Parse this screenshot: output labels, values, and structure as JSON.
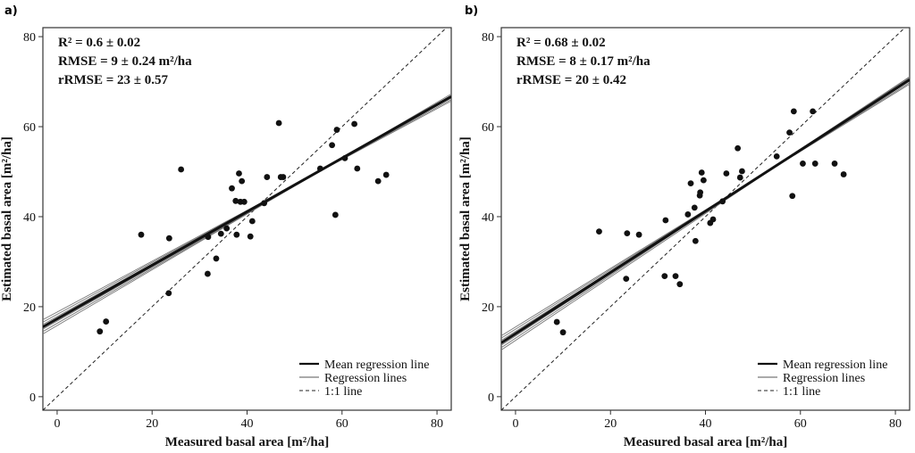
{
  "chart_data": [
    {
      "type": "scatter",
      "panel_label": "a)",
      "xlabel": "Measured basal area [m²/ha]",
      "ylabel": "Estimated basal area [m²/ha]",
      "xlim": [
        -3,
        83
      ],
      "ylim": [
        -3,
        82
      ],
      "xticks": [
        "0",
        "20",
        "40",
        "60",
        "80"
      ],
      "yticks": [
        "0",
        "20",
        "40",
        "60",
        "80"
      ],
      "stats": [
        "R² = 0.6 ± 0.02",
        "RMSE = 9 ± 0.24 m²/ha",
        "rRMSE = 23 ± 0.57"
      ],
      "mean_regression": {
        "intercept": 17.3,
        "slope": 0.595
      },
      "regression_lines": [
        {
          "intercept": 15.8,
          "slope": 0.62
        },
        {
          "intercept": 16.3,
          "slope": 0.61
        },
        {
          "intercept": 16.8,
          "slope": 0.6
        },
        {
          "intercept": 17.8,
          "slope": 0.585
        },
        {
          "intercept": 18.3,
          "slope": 0.575
        },
        {
          "intercept": 18.8,
          "slope": 0.565
        }
      ],
      "points": [
        [
          9,
          14.5
        ],
        [
          10.3,
          16.7
        ],
        [
          17.7,
          36
        ],
        [
          23.5,
          23
        ],
        [
          23.6,
          35.2
        ],
        [
          26.1,
          50.5
        ],
        [
          31.7,
          27.3
        ],
        [
          31.8,
          35.5
        ],
        [
          33.5,
          30.7
        ],
        [
          34.5,
          36.2
        ],
        [
          35.7,
          37.4
        ],
        [
          36.8,
          46.3
        ],
        [
          37.6,
          43.5
        ],
        [
          37.8,
          36
        ],
        [
          38.3,
          49.6
        ],
        [
          38.6,
          43.3
        ],
        [
          38.9,
          47.9
        ],
        [
          39.4,
          43.3
        ],
        [
          40.7,
          35.6
        ],
        [
          41.1,
          39
        ],
        [
          43.6,
          43
        ],
        [
          44.2,
          48.8
        ],
        [
          46.7,
          60.8
        ],
        [
          47.1,
          48.8
        ],
        [
          47.6,
          48.8
        ],
        [
          55.4,
          50.7
        ],
        [
          57.9,
          55.9
        ],
        [
          58.6,
          40.4
        ],
        [
          58.9,
          59.3
        ],
        [
          60.6,
          53
        ],
        [
          62.6,
          60.6
        ],
        [
          63.2,
          50.7
        ],
        [
          67.6,
          47.9
        ],
        [
          69.3,
          49.3
        ]
      ],
      "legend": [
        "Mean regression line",
        "Regression lines",
        "1:1 line"
      ]
    },
    {
      "type": "scatter",
      "panel_label": "b)",
      "xlabel": "Measured basal area [m²/ha]",
      "ylabel": "Estimated basal area [m²/ha]",
      "xlim": [
        -3,
        83
      ],
      "ylim": [
        -3,
        82
      ],
      "xticks": [
        "0",
        "20",
        "40",
        "60",
        "80"
      ],
      "yticks": [
        "0",
        "20",
        "40",
        "60",
        "80"
      ],
      "stats": [
        "R² = 0.68 ± 0.02",
        "RMSE = 8 ± 0.17 m²/ha",
        "rRMSE = 20 ± 0.42"
      ],
      "mean_regression": {
        "intercept": 14.0,
        "slope": 0.68
      },
      "regression_lines": [
        {
          "intercept": 12.5,
          "slope": 0.705
        },
        {
          "intercept": 13.0,
          "slope": 0.7
        },
        {
          "intercept": 13.5,
          "slope": 0.69
        },
        {
          "intercept": 14.5,
          "slope": 0.67
        },
        {
          "intercept": 15.0,
          "slope": 0.66
        },
        {
          "intercept": 15.5,
          "slope": 0.65
        }
      ],
      "points": [
        [
          8.7,
          16.6
        ],
        [
          10,
          14.3
        ],
        [
          17.6,
          36.7
        ],
        [
          23.3,
          26.2
        ],
        [
          23.5,
          36.3
        ],
        [
          26,
          36
        ],
        [
          31.4,
          26.8
        ],
        [
          31.6,
          39.2
        ],
        [
          33.7,
          26.8
        ],
        [
          34.6,
          25
        ],
        [
          36.3,
          40.5
        ],
        [
          36.9,
          47.4
        ],
        [
          37.7,
          42
        ],
        [
          37.9,
          34.6
        ],
        [
          38.8,
          44.7
        ],
        [
          38.9,
          45.4
        ],
        [
          39.2,
          49.8
        ],
        [
          39.6,
          48.1
        ],
        [
          41,
          38.6
        ],
        [
          41.6,
          39.4
        ],
        [
          43.6,
          43.4
        ],
        [
          44.4,
          49.6
        ],
        [
          46.8,
          55.2
        ],
        [
          47.3,
          48.7
        ],
        [
          47.7,
          50.1
        ],
        [
          55,
          53.4
        ],
        [
          57.7,
          58.7
        ],
        [
          58.3,
          44.6
        ],
        [
          58.6,
          63.4
        ],
        [
          60.5,
          51.8
        ],
        [
          62.6,
          63.4
        ],
        [
          63.1,
          51.8
        ],
        [
          67.2,
          51.8
        ],
        [
          69.1,
          49.4
        ]
      ],
      "legend": [
        "Mean regression line",
        "Regression lines",
        "1:1 line"
      ]
    }
  ]
}
